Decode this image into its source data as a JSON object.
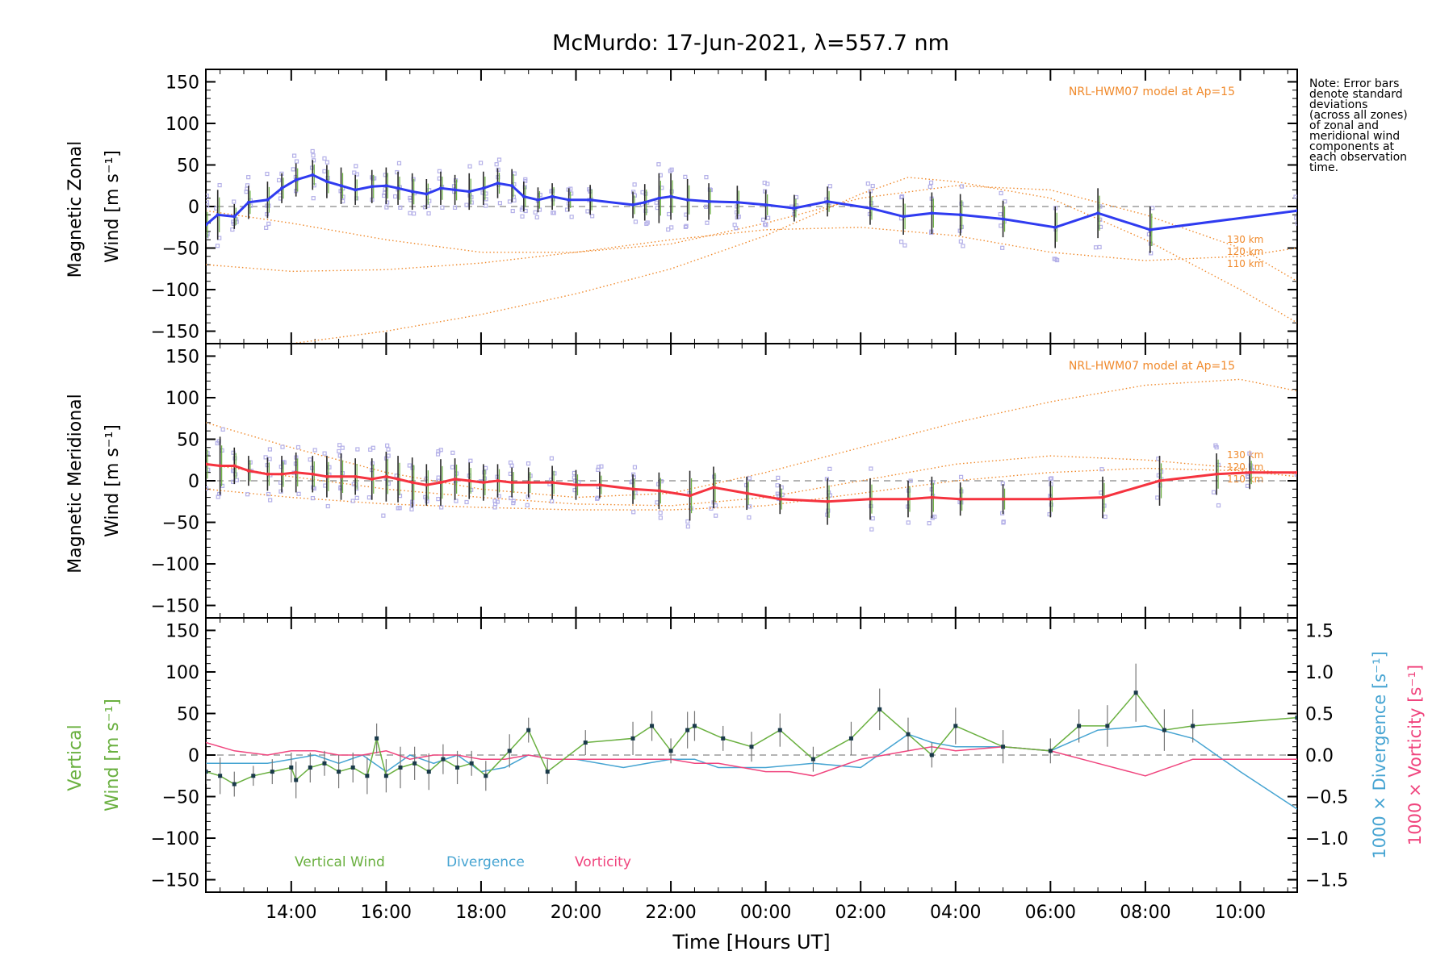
{
  "title": "McMurdo: 17-Jun-2021, λ=557.7 nm",
  "note_lines": [
    "Note: Error bars",
    "denote standard",
    "deviations",
    "(across all zones)",
    "of zonal and",
    "meridional wind",
    "components at",
    "each observation",
    "time."
  ],
  "model_label": "NRL-HWM07 model at Ap=15",
  "model_altitudes": [
    "130 km",
    "120 km",
    "110 km"
  ],
  "xaxis_label": "Time [Hours UT]",
  "colors": {
    "zonal": "#2f3bf0",
    "meridional": "#f5333f",
    "vertical": "#6ab040",
    "divergence": "#46a4d2",
    "vorticity": "#f0457e",
    "model": "#f08a2c",
    "samples": "#b4b0e8"
  },
  "chart_data": [
    {
      "type": "line",
      "panel": "zonal",
      "ylabel_line1": "Magnetic Zonal",
      "ylabel_line2": "Wind [m s⁻¹]",
      "ylim": [
        -165,
        165
      ],
      "yticks": [
        -150,
        -100,
        -50,
        0,
        50,
        100,
        150
      ],
      "xlim": [
        12.2,
        35.2
      ],
      "xtick_labels": [
        "14:00",
        "16:00",
        "18:00",
        "20:00",
        "22:00",
        "00:00",
        "02:00",
        "04:00",
        "06:00",
        "08:00",
        "10:00"
      ],
      "series": [
        {
          "name": "Zonal wind",
          "x": [
            12.2,
            12.45,
            12.8,
            13.1,
            13.5,
            13.8,
            14.1,
            14.45,
            14.75,
            15.05,
            15.35,
            15.7,
            16.0,
            16.25,
            16.55,
            16.85,
            17.15,
            17.45,
            17.75,
            18.05,
            18.35,
            18.65,
            18.9,
            19.2,
            19.5,
            19.85,
            20.3,
            21.2,
            21.45,
            21.75,
            22.0,
            22.35,
            22.8,
            23.4,
            24.0,
            24.6,
            25.3,
            26.2,
            26.9,
            27.5,
            28.1,
            29.0,
            30.1,
            31.0,
            32.1,
            35.2
          ],
          "values": [
            -22,
            -10,
            -12,
            5,
            8,
            22,
            32,
            38,
            30,
            25,
            20,
            24,
            25,
            22,
            18,
            15,
            22,
            20,
            18,
            22,
            28,
            25,
            12,
            8,
            12,
            8,
            8,
            2,
            5,
            10,
            12,
            8,
            6,
            5,
            2,
            -2,
            6,
            -2,
            -12,
            -8,
            -10,
            -15,
            -25,
            -8,
            -28,
            -5
          ],
          "error": [
            22,
            30,
            15,
            20,
            22,
            18,
            20,
            18,
            20,
            22,
            18,
            20,
            22,
            20,
            22,
            18,
            20,
            18,
            22,
            20,
            18,
            20,
            18,
            15,
            16,
            14,
            18,
            16,
            22,
            30,
            28,
            25,
            22,
            20,
            18,
            16,
            18,
            20,
            22,
            25,
            25,
            22,
            25,
            30,
            28,
            15
          ]
        },
        {
          "name": "NRL-HWM07 130 km",
          "x": [
            12.2,
            14,
            16,
            18,
            20,
            22,
            24,
            26,
            27,
            28,
            30,
            32,
            34,
            35.2
          ],
          "values": [
            -175,
            -165,
            -150,
            -130,
            -105,
            -75,
            -35,
            15,
            35,
            30,
            10,
            -40,
            -100,
            -140
          ]
        },
        {
          "name": "NRL-HWM07 120 km",
          "x": [
            12.2,
            14,
            16,
            18,
            20,
            22,
            24,
            26,
            28,
            30,
            32,
            34,
            35.2
          ],
          "values": [
            -5,
            -20,
            -40,
            -55,
            -55,
            -45,
            -20,
            10,
            25,
            20,
            -10,
            -50,
            -90
          ]
        },
        {
          "name": "NRL-HWM07 110 km",
          "x": [
            12.2,
            14,
            16,
            18,
            20,
            22,
            24,
            26,
            28,
            30,
            32,
            34,
            35.2
          ],
          "values": [
            -70,
            -78,
            -76,
            -68,
            -55,
            -40,
            -28,
            -25,
            -35,
            -55,
            -65,
            -60,
            -50
          ]
        }
      ]
    },
    {
      "type": "line",
      "panel": "meridional",
      "ylabel_line1": "Magnetic Meridional",
      "ylabel_line2": "Wind [m s⁻¹]",
      "ylim": [
        -165,
        165
      ],
      "yticks": [
        -150,
        -100,
        -50,
        0,
        50,
        100,
        150
      ],
      "xlim": [
        12.2,
        35.2
      ],
      "series": [
        {
          "name": "Meridional wind",
          "x": [
            12.2,
            12.5,
            12.8,
            13.1,
            13.5,
            13.8,
            14.1,
            14.45,
            14.75,
            15.05,
            15.35,
            15.7,
            16.0,
            16.25,
            16.55,
            16.85,
            17.15,
            17.45,
            17.75,
            18.05,
            18.35,
            18.65,
            19.0,
            19.5,
            20.0,
            20.5,
            21.2,
            21.75,
            22.4,
            22.9,
            23.6,
            24.3,
            25.3,
            26.2,
            27.0,
            27.5,
            28.1,
            29.0,
            30.0,
            31.1,
            32.3,
            33.5,
            34.2,
            35.2
          ],
          "values": [
            20,
            18,
            18,
            12,
            8,
            8,
            10,
            8,
            5,
            5,
            5,
            2,
            5,
            2,
            -2,
            -5,
            -2,
            2,
            0,
            -2,
            0,
            -2,
            -2,
            -2,
            -5,
            -5,
            -10,
            -12,
            -18,
            -8,
            -15,
            -22,
            -25,
            -22,
            -22,
            -20,
            -22,
            -22,
            -22,
            -20,
            0,
            8,
            10,
            10
          ],
          "error": [
            25,
            35,
            22,
            18,
            20,
            22,
            24,
            22,
            25,
            28,
            22,
            25,
            30,
            28,
            30,
            25,
            28,
            25,
            22,
            22,
            20,
            18,
            18,
            20,
            18,
            16,
            18,
            22,
            30,
            25,
            20,
            18,
            28,
            25,
            22,
            25,
            20,
            18,
            22,
            25,
            30,
            25,
            20,
            12
          ]
        },
        {
          "name": "NRL-HWM07 130 km",
          "x": [
            12.2,
            14,
            16,
            18,
            20,
            22,
            24,
            26,
            28,
            30,
            32,
            34,
            35.2
          ],
          "values": [
            70,
            40,
            10,
            -10,
            -20,
            -15,
            10,
            40,
            70,
            95,
            115,
            122,
            108
          ]
        },
        {
          "name": "NRL-HWM07 120 km",
          "x": [
            12.2,
            14,
            16,
            18,
            20,
            22,
            24,
            26,
            28,
            30,
            32,
            34,
            35.2
          ],
          "values": [
            20,
            5,
            -10,
            -20,
            -28,
            -30,
            -20,
            0,
            20,
            30,
            25,
            15,
            8
          ]
        },
        {
          "name": "NRL-HWM07 110 km",
          "x": [
            12.2,
            14,
            16,
            18,
            20,
            22,
            24,
            26,
            28,
            30,
            32,
            34,
            35.2
          ],
          "values": [
            -10,
            -20,
            -28,
            -32,
            -35,
            -35,
            -30,
            -15,
            0,
            10,
            15,
            12,
            5
          ]
        }
      ]
    },
    {
      "type": "line",
      "panel": "vertical",
      "ylabel_line1": "Vertical",
      "ylabel_line2": "Wind [m s⁻¹]",
      "ylabel_right1": "1000 × Divergence [s⁻¹]",
      "ylabel_right2": "1000 × Vorticity [s⁻¹]",
      "ylim": [
        -165,
        165
      ],
      "yticks": [
        -150,
        -100,
        -50,
        0,
        50,
        100,
        150
      ],
      "y2lim": [
        -1.65,
        1.65
      ],
      "y2ticks": [
        "1.5",
        "1.0",
        "0.5",
        "0.0",
        "−0.5",
        "−1.0",
        "−1.5"
      ],
      "y2tick_values": [
        1.5,
        1.0,
        0.5,
        0.0,
        -0.5,
        -1.0,
        -1.5
      ],
      "xlim": [
        12.2,
        35.2
      ],
      "legend": [
        "Vertical Wind",
        "Divergence",
        "Vorticity"
      ],
      "series": [
        {
          "name": "Vertical Wind",
          "x": [
            12.2,
            12.5,
            12.8,
            13.2,
            13.6,
            14.0,
            14.1,
            14.4,
            14.7,
            15.0,
            15.3,
            15.6,
            15.8,
            16.0,
            16.3,
            16.6,
            16.9,
            17.2,
            17.5,
            17.8,
            18.1,
            18.6,
            19.0,
            19.4,
            20.2,
            21.2,
            21.6,
            22.0,
            22.35,
            22.5,
            23.1,
            23.7,
            24.3,
            25.0,
            25.8,
            26.4,
            27.0,
            27.5,
            28.0,
            29.0,
            30.0,
            30.6,
            31.2,
            31.8,
            32.4,
            33.0,
            35.2
          ],
          "values": [
            -20,
            -25,
            -35,
            -25,
            -20,
            -15,
            -30,
            -15,
            -10,
            -20,
            -15,
            -25,
            20,
            -25,
            -15,
            -10,
            -20,
            -5,
            -15,
            -10,
            -25,
            5,
            30,
            -20,
            15,
            20,
            35,
            5,
            30,
            35,
            20,
            10,
            30,
            -5,
            20,
            55,
            25,
            0,
            35,
            10,
            5,
            35,
            35,
            75,
            30,
            35,
            45
          ],
          "error": [
            15,
            22,
            15,
            12,
            15,
            18,
            22,
            18,
            15,
            20,
            18,
            22,
            18,
            20,
            25,
            20,
            22,
            18,
            20,
            15,
            18,
            20,
            15,
            15,
            15,
            20,
            18,
            15,
            22,
            18,
            15,
            18,
            20,
            15,
            20,
            25,
            20,
            15,
            22,
            20,
            15,
            20,
            25,
            35,
            25,
            20,
            25
          ]
        },
        {
          "name": "Divergence",
          "x": [
            12.2,
            12.8,
            13.5,
            14.0,
            14.5,
            15.0,
            15.5,
            16.0,
            16.5,
            17.0,
            17.5,
            18.0,
            18.5,
            19.0,
            19.5,
            20.0,
            21.0,
            21.5,
            22.0,
            22.5,
            23.0,
            24.0,
            25.0,
            26.0,
            27.0,
            27.5,
            28.0,
            29.0,
            30.0,
            31.0,
            32.0,
            33.0,
            34.0,
            35.2
          ],
          "values": [
            -0.1,
            -0.1,
            -0.1,
            -0.05,
            0.0,
            -0.1,
            0.0,
            -0.2,
            0.0,
            -0.1,
            0.0,
            -0.2,
            -0.15,
            0.0,
            -0.05,
            -0.05,
            -0.15,
            -0.1,
            -0.05,
            -0.05,
            -0.15,
            -0.15,
            -0.1,
            -0.15,
            0.25,
            0.15,
            0.1,
            0.1,
            0.05,
            0.3,
            0.35,
            0.2,
            -0.2,
            -0.65
          ]
        },
        {
          "name": "Vorticity",
          "x": [
            12.2,
            12.8,
            13.5,
            14.0,
            14.5,
            15.0,
            15.5,
            16.0,
            16.5,
            17.0,
            17.5,
            18.0,
            18.5,
            19.0,
            19.5,
            20.0,
            21.0,
            22.0,
            22.5,
            23.0,
            24.0,
            24.5,
            25.0,
            25.5,
            26.0,
            27.0,
            27.5,
            28.0,
            29.0,
            30.0,
            31.0,
            32.0,
            33.0,
            34.0,
            35.2
          ],
          "values": [
            0.15,
            0.05,
            0.0,
            0.05,
            0.05,
            0.0,
            0.0,
            0.05,
            -0.05,
            0.0,
            0.0,
            -0.05,
            -0.05,
            0.0,
            -0.05,
            -0.05,
            -0.05,
            -0.05,
            -0.1,
            -0.1,
            -0.2,
            -0.2,
            -0.25,
            -0.15,
            -0.05,
            0.05,
            0.1,
            0.05,
            0.1,
            0.05,
            -0.1,
            -0.25,
            -0.05,
            -0.05,
            -0.05
          ]
        }
      ]
    }
  ]
}
